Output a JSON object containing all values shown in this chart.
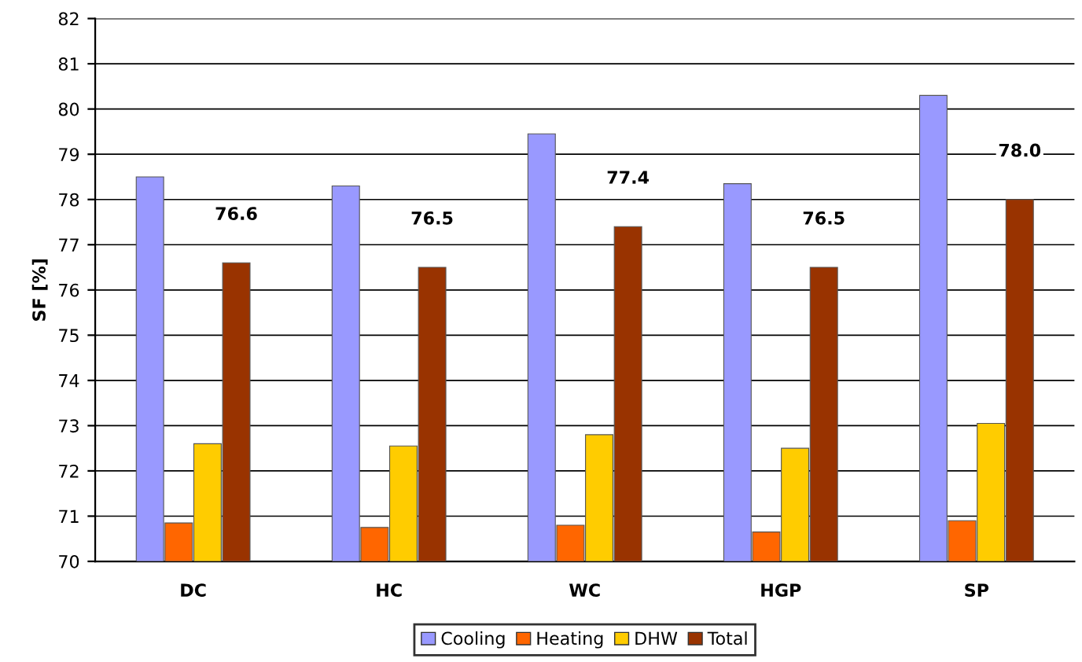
{
  "chart_data": {
    "type": "bar",
    "ylabel": "SF [%]",
    "categories": [
      "DC",
      "HC",
      "WC",
      "HGP",
      "SP"
    ],
    "series": [
      {
        "name": "Cooling",
        "color": "#9999ff",
        "values": [
          78.5,
          78.3,
          79.45,
          78.35,
          80.3
        ]
      },
      {
        "name": "Heating",
        "color": "#ff6600",
        "values": [
          70.85,
          70.75,
          70.8,
          70.65,
          70.9
        ]
      },
      {
        "name": "DHW",
        "color": "#ffcc00",
        "values": [
          72.6,
          72.55,
          72.8,
          72.5,
          73.05
        ]
      },
      {
        "name": "Total",
        "color": "#993300",
        "values": [
          76.6,
          76.5,
          77.4,
          76.5,
          78.0
        ],
        "value_labels": [
          "76.6",
          "76.5",
          "77.4",
          "76.5",
          "78.0"
        ]
      }
    ],
    "ylim": [
      70,
      82
    ],
    "yticks": [
      70,
      71,
      72,
      73,
      74,
      75,
      76,
      77,
      78,
      79,
      80,
      81,
      82
    ],
    "grid": "y",
    "legend": "bottom"
  }
}
